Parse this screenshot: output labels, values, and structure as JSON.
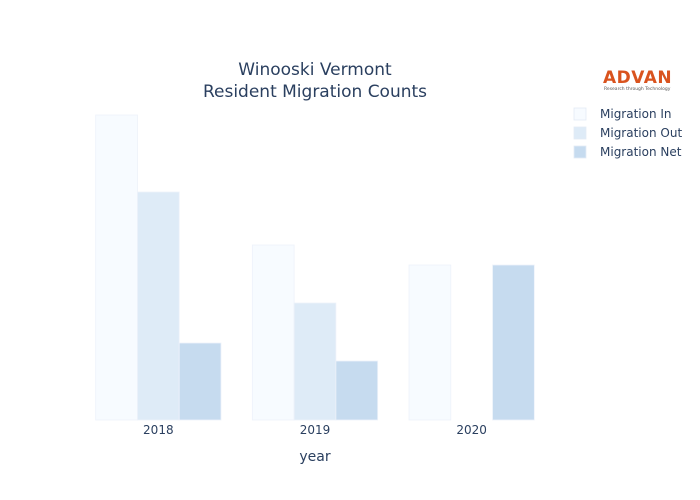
{
  "chart_data": {
    "type": "bar",
    "title_lines": [
      "Winooski Vermont",
      "Resident Migration Counts"
    ],
    "xlabel": "year",
    "ylabel": "",
    "categories": [
      "2018",
      "2019",
      "2020"
    ],
    "series": [
      {
        "name": "Migration In",
        "values": [
          305,
          175,
          155
        ],
        "color": "#f7fbff"
      },
      {
        "name": "Migration Out",
        "values": [
          228,
          117,
          0
        ],
        "color": "#deebf7"
      },
      {
        "name": "Migration Net",
        "values": [
          77,
          59,
          155
        ],
        "color": "#c6dbef"
      }
    ],
    "ylim": [
      0,
      320
    ],
    "grid": false,
    "legend_position": "top-right"
  },
  "logo": {
    "name": "ADVAN",
    "tagline": "Research through Technology"
  }
}
